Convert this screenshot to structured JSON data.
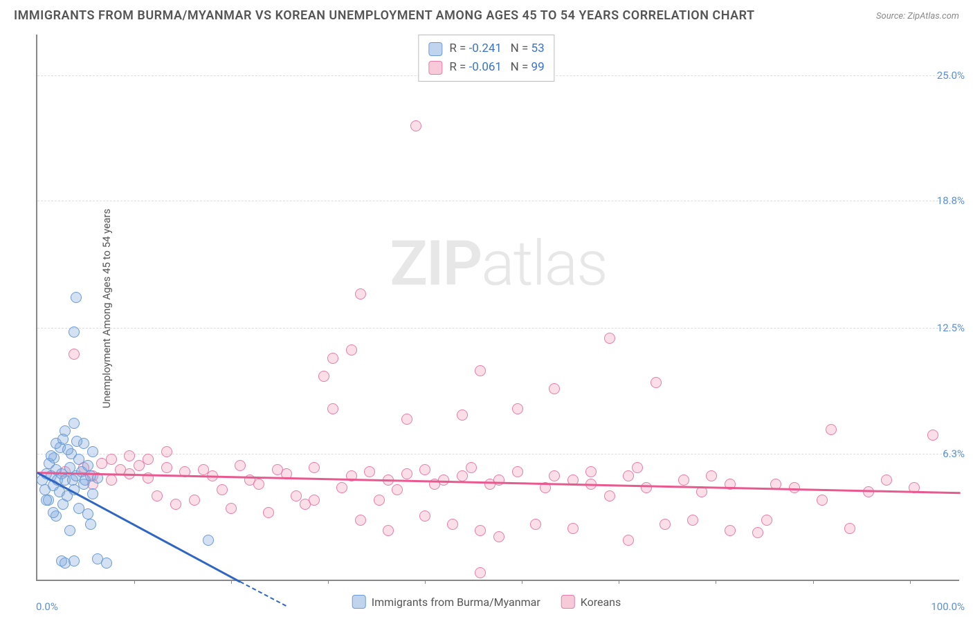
{
  "title": "IMMIGRANTS FROM BURMA/MYANMAR VS KOREAN UNEMPLOYMENT AMONG AGES 45 TO 54 YEARS CORRELATION CHART",
  "source": "Source: ZipAtlas.com",
  "y_axis_label": "Unemployment Among Ages 45 to 54 years",
  "watermark_bold": "ZIP",
  "watermark_light": "atlas",
  "chart": {
    "type": "scatter",
    "xlim": [
      0,
      100
    ],
    "ylim": [
      0,
      27
    ],
    "x_ticks_percent": [
      0,
      10.5,
      21,
      31.5,
      42,
      52.5,
      63,
      73.5,
      84,
      94.5,
      100
    ],
    "x_tick_labels": {
      "0": "0.0%",
      "100": "100.0%"
    },
    "y_ticks": [
      {
        "value": 6.3,
        "label": "6.3%"
      },
      {
        "value": 12.5,
        "label": "12.5%"
      },
      {
        "value": 18.8,
        "label": "18.8%"
      },
      {
        "value": 25.0,
        "label": "25.0%"
      }
    ],
    "grid_color": "#dddddd",
    "background_color": "#ffffff",
    "series": [
      {
        "name": "Immigrants from Burma/Myanmar",
        "color_fill": "rgba(130,170,220,0.35)",
        "color_stroke": "#6a9bd8",
        "trend_color": "#2f66c4",
        "R": "-0.241",
        "N": "53",
        "trend": {
          "x1": 0,
          "y1": 5.4,
          "x2": 22,
          "y2": 0
        },
        "points": [
          [
            0.5,
            5.0
          ],
          [
            0.8,
            4.5
          ],
          [
            1.0,
            5.3
          ],
          [
            1.2,
            4.0
          ],
          [
            1.3,
            5.8
          ],
          [
            1.5,
            5.2
          ],
          [
            1.7,
            4.7
          ],
          [
            1.8,
            6.1
          ],
          [
            2.0,
            3.2
          ],
          [
            2.0,
            5.5
          ],
          [
            2.2,
            5.0
          ],
          [
            2.4,
            4.4
          ],
          [
            2.5,
            6.6
          ],
          [
            2.6,
            5.3
          ],
          [
            2.8,
            3.8
          ],
          [
            3.0,
            7.4
          ],
          [
            3.0,
            5.0
          ],
          [
            3.2,
            4.2
          ],
          [
            3.5,
            5.6
          ],
          [
            3.5,
            2.5
          ],
          [
            3.7,
            6.3
          ],
          [
            3.8,
            5.0
          ],
          [
            4.0,
            4.5
          ],
          [
            4.0,
            7.8
          ],
          [
            4.2,
            5.2
          ],
          [
            4.5,
            3.6
          ],
          [
            4.5,
            6.0
          ],
          [
            4.8,
            5.4
          ],
          [
            5.0,
            4.8
          ],
          [
            5.0,
            6.8
          ],
          [
            5.2,
            5.0
          ],
          [
            5.5,
            3.3
          ],
          [
            5.5,
            5.7
          ],
          [
            5.8,
            5.2
          ],
          [
            6.0,
            4.3
          ],
          [
            6.0,
            6.4
          ],
          [
            4.2,
            14.0
          ],
          [
            4.0,
            12.3
          ],
          [
            2.6,
            1.0
          ],
          [
            3.0,
            0.9
          ],
          [
            4.0,
            1.0
          ],
          [
            6.5,
            1.1
          ],
          [
            7.5,
            0.9
          ],
          [
            2.0,
            6.8
          ],
          [
            1.5,
            6.2
          ],
          [
            1.0,
            4.0
          ],
          [
            1.7,
            3.4
          ],
          [
            3.3,
            6.5
          ],
          [
            2.8,
            7.0
          ],
          [
            4.3,
            6.9
          ],
          [
            5.8,
            2.8
          ],
          [
            6.5,
            5.1
          ],
          [
            18.5,
            2.0
          ]
        ]
      },
      {
        "name": "Koreans",
        "color_fill": "rgba(240,150,180,0.3)",
        "color_stroke": "#ea7ba8",
        "trend_color": "#e85a8f",
        "R": "-0.061",
        "N": "99",
        "trend": {
          "x1": 0,
          "y1": 5.4,
          "x2": 100,
          "y2": 4.4
        },
        "points": [
          [
            3,
            5.4
          ],
          [
            5,
            5.6
          ],
          [
            6,
            5.2
          ],
          [
            7,
            5.8
          ],
          [
            8,
            5.0
          ],
          [
            9,
            5.5
          ],
          [
            10,
            5.3
          ],
          [
            11,
            5.7
          ],
          [
            12,
            5.1
          ],
          [
            13,
            4.2
          ],
          [
            14,
            5.6
          ],
          [
            15,
            3.8
          ],
          [
            16,
            5.4
          ],
          [
            17,
            4.0
          ],
          [
            18,
            5.5
          ],
          [
            19,
            5.2
          ],
          [
            20,
            4.5
          ],
          [
            21,
            3.6
          ],
          [
            22,
            5.7
          ],
          [
            23,
            5.0
          ],
          [
            24,
            4.8
          ],
          [
            25,
            3.4
          ],
          [
            26,
            5.5
          ],
          [
            27,
            5.3
          ],
          [
            28,
            4.2
          ],
          [
            29,
            3.8
          ],
          [
            30,
            5.6
          ],
          [
            30,
            4.0
          ],
          [
            31,
            10.1
          ],
          [
            32,
            8.5
          ],
          [
            33,
            4.6
          ],
          [
            34,
            5.2
          ],
          [
            35,
            3.0
          ],
          [
            35,
            14.2
          ],
          [
            36,
            5.4
          ],
          [
            37,
            4.0
          ],
          [
            38,
            5.0
          ],
          [
            38,
            2.5
          ],
          [
            39,
            4.5
          ],
          [
            40,
            5.3
          ],
          [
            40,
            8.0
          ],
          [
            41,
            22.5
          ],
          [
            42,
            5.5
          ],
          [
            42,
            3.2
          ],
          [
            43,
            4.8
          ],
          [
            44,
            5.0
          ],
          [
            45,
            2.8
          ],
          [
            46,
            8.2
          ],
          [
            46,
            5.2
          ],
          [
            47,
            5.6
          ],
          [
            48,
            2.5
          ],
          [
            48,
            10.4
          ],
          [
            49,
            4.8
          ],
          [
            50,
            5.0
          ],
          [
            50,
            2.2
          ],
          [
            52,
            5.4
          ],
          [
            52,
            8.5
          ],
          [
            54,
            2.8
          ],
          [
            55,
            4.6
          ],
          [
            56,
            5.2
          ],
          [
            56,
            9.5
          ],
          [
            58,
            5.0
          ],
          [
            58,
            2.6
          ],
          [
            60,
            4.8
          ],
          [
            60,
            5.4
          ],
          [
            62,
            4.2
          ],
          [
            62,
            12.0
          ],
          [
            64,
            2.0
          ],
          [
            64,
            5.2
          ],
          [
            65,
            5.6
          ],
          [
            66,
            4.6
          ],
          [
            67,
            9.8
          ],
          [
            68,
            2.8
          ],
          [
            70,
            5.0
          ],
          [
            71,
            3.0
          ],
          [
            72,
            4.4
          ],
          [
            73,
            5.2
          ],
          [
            75,
            4.8
          ],
          [
            78,
            2.4
          ],
          [
            79,
            3.0
          ],
          [
            80,
            4.8
          ],
          [
            82,
            4.6
          ],
          [
            85,
            4.0
          ],
          [
            86,
            7.5
          ],
          [
            88,
            2.6
          ],
          [
            90,
            4.4
          ],
          [
            92,
            5.0
          ],
          [
            95,
            4.6
          ],
          [
            97,
            7.2
          ],
          [
            6,
            4.8
          ],
          [
            8,
            6.0
          ],
          [
            10,
            6.2
          ],
          [
            12,
            6.0
          ],
          [
            14,
            6.4
          ],
          [
            4,
            11.2
          ],
          [
            32,
            11.0
          ],
          [
            48,
            0.4
          ],
          [
            75,
            2.5
          ],
          [
            34,
            11.4
          ]
        ]
      }
    ]
  },
  "legend_bottom": [
    {
      "swatch": "blue",
      "label": "Immigrants from Burma/Myanmar"
    },
    {
      "swatch": "pink",
      "label": "Koreans"
    }
  ]
}
